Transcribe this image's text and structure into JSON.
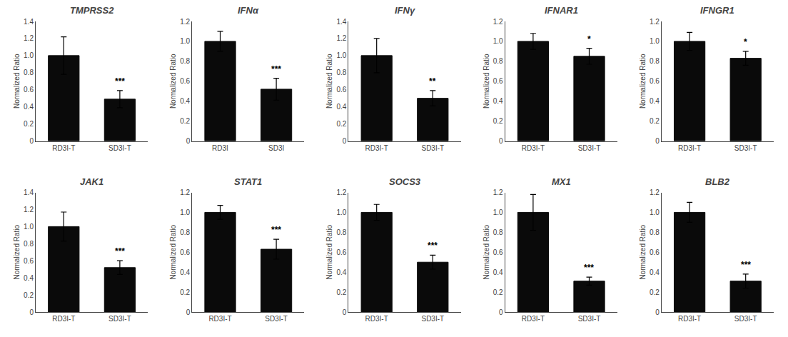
{
  "chart_data": [
    {
      "type": "bar",
      "title": "TMPRSS2",
      "categories": [
        "RD3I-T",
        "SD3I-T"
      ],
      "values": [
        1.0,
        0.49
      ],
      "errors": [
        0.22,
        0.1
      ],
      "ylim": [
        0,
        1.4
      ],
      "yticks": [
        0,
        0.2,
        0.4,
        0.6,
        0.8,
        {
          "value": 1.0,
          "label": "1.0"
        },
        1.2,
        1.4
      ],
      "ylabel": "Normalized Ratio",
      "color": "#0a0a0a",
      "grid": false,
      "annotations": [
        {
          "text": "***",
          "category": "SD3I-T"
        }
      ]
    },
    {
      "type": "bar",
      "title": "IFNα",
      "categories": [
        "RD3I",
        "SD3I"
      ],
      "values": [
        1.0,
        0.52
      ],
      "errors": [
        0.1,
        0.11
      ],
      "ylim": [
        0,
        1.2
      ],
      "yticks": [
        0,
        0.2,
        0.4,
        0.6,
        0.8,
        {
          "value": 1.0,
          "label": "1.0"
        },
        1.2
      ],
      "ylabel": "Normalized Ratio",
      "color": "#0a0a0a",
      "grid": false,
      "annotations": [
        {
          "text": "***",
          "category": "SD3I"
        }
      ]
    },
    {
      "type": "bar",
      "title": "IFNγ",
      "categories": [
        "RD3I-T",
        "SD3I-T"
      ],
      "values": [
        1.0,
        0.5
      ],
      "errors": [
        0.2,
        0.09
      ],
      "ylim": [
        0,
        1.4
      ],
      "yticks": [
        0,
        0.2,
        0.4,
        0.6,
        0.8,
        {
          "value": 1.0,
          "label": "1.0"
        },
        1.2,
        1.4
      ],
      "ylabel": "Normalized Ratio",
      "color": "#0a0a0a",
      "grid": false,
      "annotations": [
        {
          "text": "**",
          "category": "SD3I-T"
        }
      ]
    },
    {
      "type": "bar",
      "title": "IFNAR1",
      "categories": [
        "RD3I-T",
        "SD3I-T"
      ],
      "values": [
        1.0,
        0.85
      ],
      "errors": [
        0.08,
        0.08
      ],
      "ylim": [
        0,
        1.2
      ],
      "yticks": [
        0,
        0.2,
        0.4,
        0.6,
        0.8,
        {
          "value": 1.0,
          "label": "1.0"
        },
        1.2
      ],
      "ylabel": "Normalized Ratio",
      "color": "#0a0a0a",
      "grid": false,
      "annotations": [
        {
          "text": "*",
          "category": "SD3I-T"
        }
      ]
    },
    {
      "type": "bar",
      "title": "IFNGR1",
      "categories": [
        "RD3I-T",
        "SD3I-T"
      ],
      "values": [
        1.0,
        0.83
      ],
      "errors": [
        0.09,
        0.07
      ],
      "ylim": [
        0,
        1.2
      ],
      "yticks": [
        0,
        0.2,
        0.4,
        0.6,
        0.8,
        {
          "value": 1.0,
          "label": "1.0"
        },
        1.2
      ],
      "ylabel": "Normalized Ratio",
      "color": "#0a0a0a",
      "grid": false,
      "annotations": [
        {
          "text": "*",
          "category": "SD3I-T"
        }
      ]
    },
    {
      "type": "bar",
      "title": "JAK1",
      "categories": [
        "RD3I-T",
        "SD3I-T"
      ],
      "values": [
        1.0,
        0.52
      ],
      "errors": [
        0.17,
        0.08
      ],
      "ylim": [
        0,
        1.4
      ],
      "yticks": [
        0,
        0.2,
        0.4,
        0.6,
        0.8,
        {
          "value": 1.0,
          "label": "1.0"
        },
        1.2,
        1.4
      ],
      "ylabel": "Normalized Ratio",
      "color": "#0a0a0a",
      "grid": false,
      "annotations": [
        {
          "text": "***",
          "category": "SD3I-T"
        }
      ]
    },
    {
      "type": "bar",
      "title": "STAT1",
      "categories": [
        "RD3I-T",
        "SD3I-T"
      ],
      "values": [
        1.0,
        0.63
      ],
      "errors": [
        0.07,
        0.1
      ],
      "ylim": [
        0,
        1.2
      ],
      "yticks": [
        0,
        0.2,
        0.4,
        0.6,
        0.8,
        {
          "value": 1.0,
          "label": "1.0"
        },
        1.2
      ],
      "ylabel": "Normalized Ratio",
      "color": "#0a0a0a",
      "grid": false,
      "annotations": [
        {
          "text": "***",
          "category": "SD3I-T"
        }
      ]
    },
    {
      "type": "bar",
      "title": "SOCS3",
      "categories": [
        "RD3I-T",
        "SD3I-T"
      ],
      "values": [
        1.0,
        0.5
      ],
      "errors": [
        0.08,
        0.07
      ],
      "ylim": [
        0,
        1.2
      ],
      "yticks": [
        0,
        0.2,
        0.4,
        0.6,
        0.8,
        {
          "value": 1.0,
          "label": "1.0"
        },
        1.2
      ],
      "ylabel": "Normalized Ratio",
      "color": "#0a0a0a",
      "grid": false,
      "annotations": [
        {
          "text": "***",
          "category": "SD3I-T"
        }
      ]
    },
    {
      "type": "bar",
      "title": "MX1",
      "categories": [
        "RD3I-T",
        "SD3I-T"
      ],
      "values": [
        1.0,
        0.31
      ],
      "errors": [
        0.18,
        0.04
      ],
      "ylim": [
        0,
        1.2
      ],
      "yticks": [
        0,
        0.2,
        0.4,
        0.6,
        0.8,
        {
          "value": 1.0,
          "label": "1.0"
        },
        1.2
      ],
      "ylabel": "Normalized Ratio",
      "color": "#0a0a0a",
      "grid": false,
      "annotations": [
        {
          "text": "***",
          "category": "SD3I-T"
        }
      ]
    },
    {
      "type": "bar",
      "title": "BLB2",
      "categories": [
        "RD3I-T",
        "SD3I-T"
      ],
      "values": [
        1.0,
        0.31
      ],
      "errors": [
        0.1,
        0.07
      ],
      "ylim": [
        0,
        1.2
      ],
      "yticks": [
        0,
        0.2,
        0.4,
        0.6,
        0.8,
        {
          "value": 1.0,
          "label": "1.0"
        },
        1.2
      ],
      "ylabel": "Normalized Ratio",
      "color": "#0a0a0a",
      "grid": false,
      "annotations": [
        {
          "text": "***",
          "category": "SD3I-T"
        }
      ]
    }
  ]
}
